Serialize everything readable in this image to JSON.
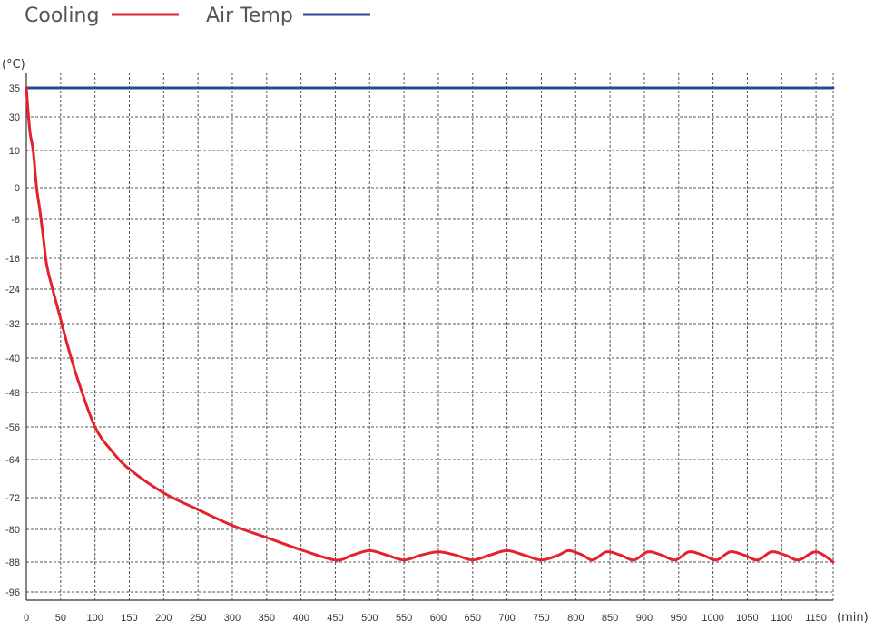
{
  "chart_data": {
    "type": "line",
    "legend_placement": "top-left",
    "grid": true,
    "y_unit": "(°C)",
    "x_unit": "(min)",
    "xlim": [
      0,
      1175
    ],
    "y_ticks": [
      "35",
      "30",
      "10",
      "0",
      "-8",
      "-16",
      "-24",
      "-32",
      "-40",
      "-48",
      "-56",
      "-64",
      "-72",
      "-80",
      "-88",
      "-96"
    ],
    "x_ticks": [
      "0",
      "50",
      "100",
      "150",
      "200",
      "250",
      "300",
      "350",
      "400",
      "450",
      "500",
      "550",
      "600",
      "650",
      "700",
      "750",
      "800",
      "850",
      "900",
      "950",
      "1000",
      "1050",
      "1100",
      "1150"
    ],
    "series": [
      {
        "name": "Cooling",
        "color": "#e3222b",
        "x": [
          0,
          5,
          10,
          15,
          20,
          25,
          30,
          40,
          50,
          60,
          75,
          100,
          125,
          150,
          200,
          250,
          300,
          350,
          400,
          450,
          475,
          500,
          525,
          550,
          575,
          600,
          625,
          650,
          675,
          700,
          725,
          750,
          775,
          790,
          810,
          825,
          845,
          865,
          885,
          905,
          925,
          945,
          965,
          985,
          1005,
          1025,
          1045,
          1065,
          1085,
          1105,
          1125,
          1150,
          1175
        ],
        "y": [
          35,
          22,
          10,
          0,
          -6,
          -12,
          -18,
          -25,
          -31,
          -37,
          -45,
          -56,
          -62,
          -66,
          -71,
          -75,
          -79,
          -82,
          -85,
          -87.5,
          -86.3,
          -85.2,
          -86.3,
          -87.5,
          -86.3,
          -85.5,
          -86.3,
          -87.5,
          -86.3,
          -85.2,
          -86.3,
          -87.5,
          -86.3,
          -85.2,
          -86.3,
          -87.5,
          -85.5,
          -86.3,
          -87.5,
          -85.5,
          -86.3,
          -87.5,
          -85.5,
          -86.3,
          -87.5,
          -85.5,
          -86.3,
          -87.5,
          -85.5,
          -86.3,
          -87.5,
          -85.5,
          -88
        ]
      },
      {
        "name": "Air Temp",
        "color": "#2c4a94",
        "x": [
          0,
          1175
        ],
        "y": [
          35,
          35
        ]
      }
    ]
  }
}
